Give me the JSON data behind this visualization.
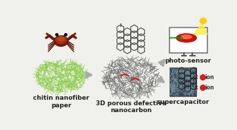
{
  "bg_color": "#f0f0ec",
  "label1": "chitin nanofiber\npaper",
  "label2": "3D porous defective\nnanocarbon",
  "label3": "photo-sensor",
  "label4": "supercapacitor",
  "label_fontsize": 6.5,
  "arrow_color": "#aaaaaa",
  "fiber_green": "#88cc44",
  "fiber_dark_lo": 0.35,
  "fiber_dark_hi": 0.65,
  "graphene_color": "#444444",
  "defect_color": "#cc2222",
  "ion_color": "#cc2222",
  "sun_yellow": "#ffdd00",
  "laser_red": "#cc1111",
  "laser_green": "#009900",
  "sensor_box": "#888888",
  "sc_bg": "#3a4a55",
  "sc_fiber": "#8899aa",
  "hex2_color": "#222222"
}
